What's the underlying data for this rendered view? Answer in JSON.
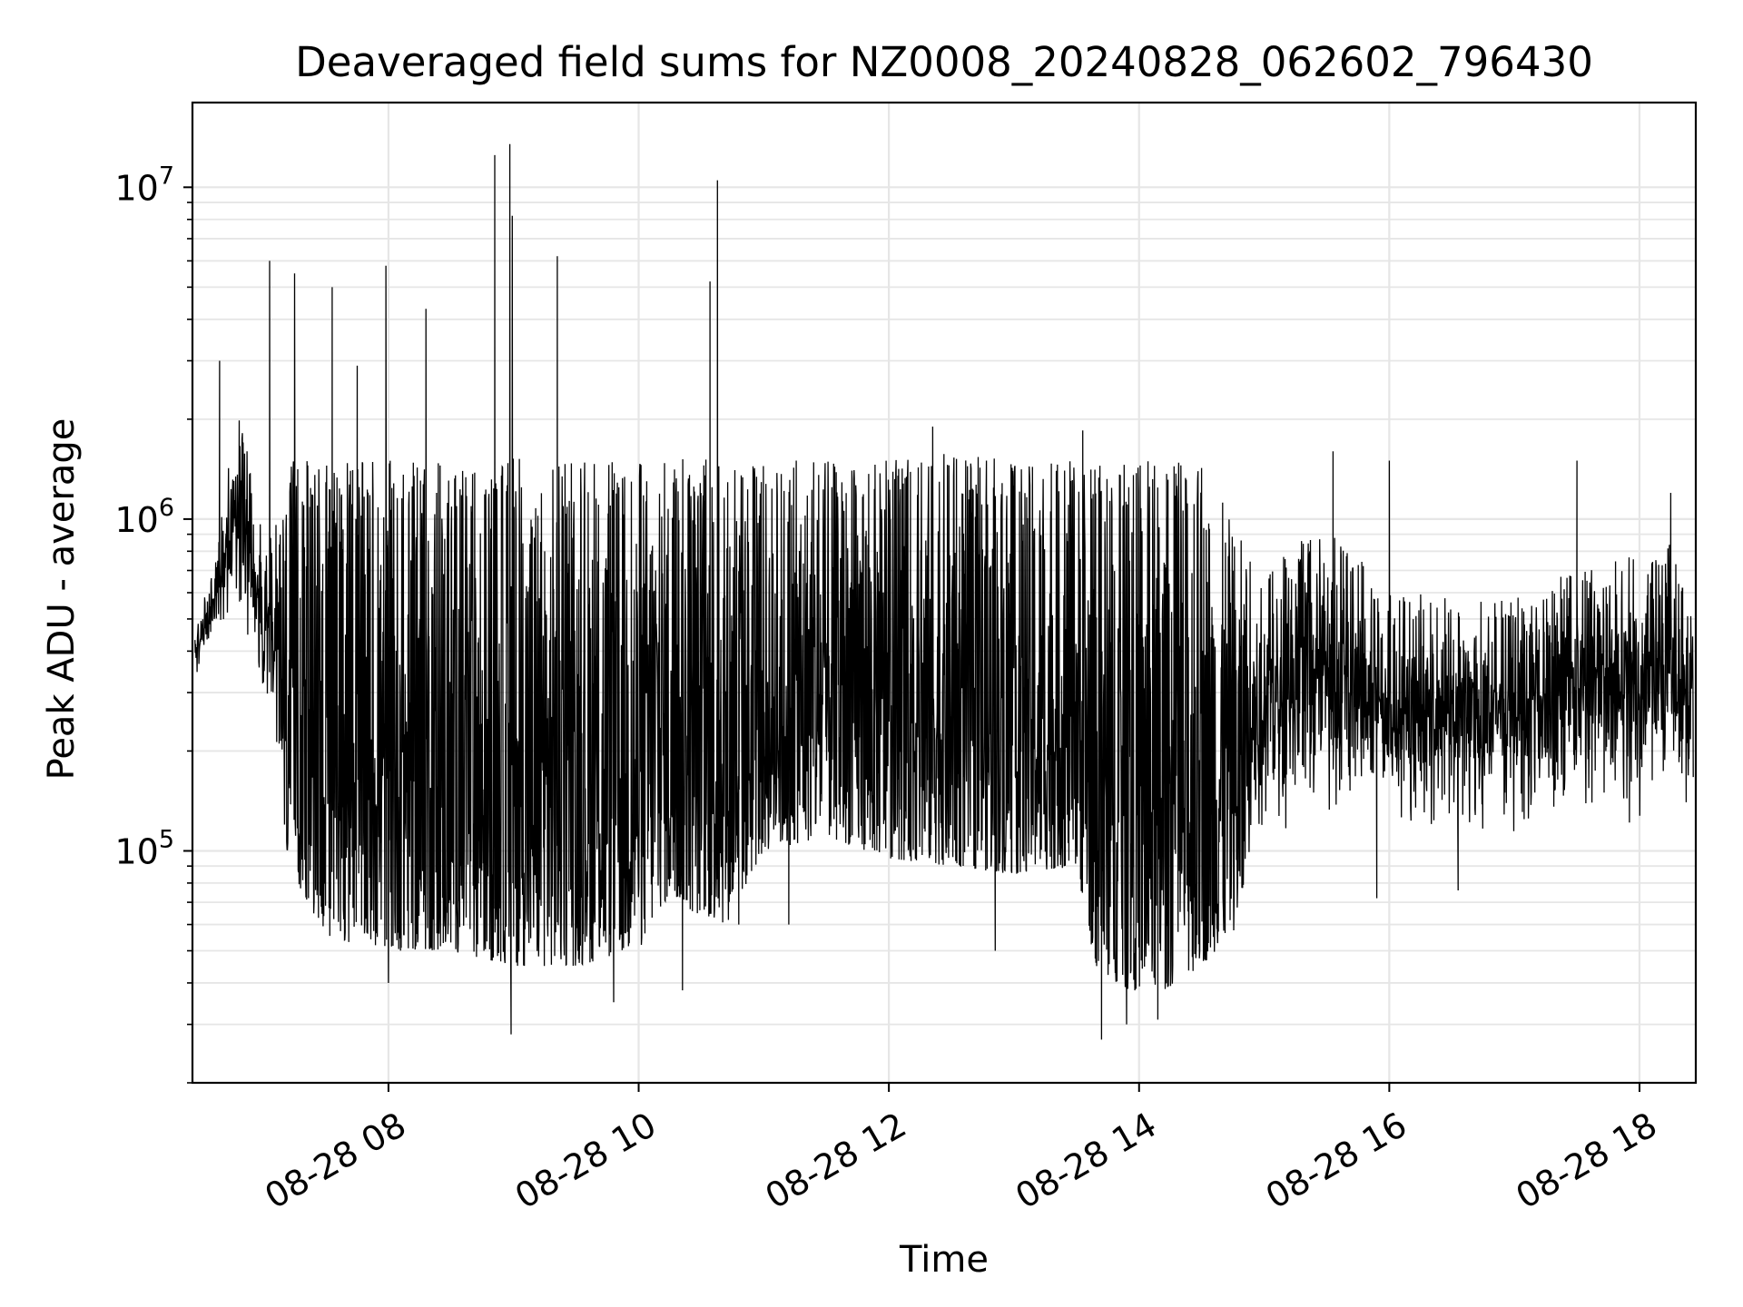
{
  "chart_data": {
    "type": "line",
    "title": "Deaveraged field sums for NZ0008_20240828_062602_796430",
    "xlabel": "Time",
    "ylabel": "Peak ADU - average",
    "yscale": "log",
    "grid": true,
    "xlim": [
      "08-28 06:26",
      "08-28 18:27"
    ],
    "ylim": [
      20000,
      18000000
    ],
    "x_ticks": [
      "08-28 08",
      "08-28 10",
      "08-28 12",
      "08-28 14",
      "08-28 16",
      "08-28 18"
    ],
    "y_ticks": [
      {
        "base": "10",
        "exp": "5",
        "value": 100000
      },
      {
        "base": "10",
        "exp": "6",
        "value": 1000000
      },
      {
        "base": "10",
        "exp": "7",
        "value": 10000000
      }
    ],
    "series": [
      {
        "color": "#000000",
        "x_unit": "hour of 2024-08-28",
        "envelope_x": [
          6.45,
          6.6,
          6.8,
          7.0,
          7.2,
          7.5,
          8.0,
          8.5,
          9.0,
          9.5,
          10.0,
          10.2,
          10.7,
          11.0,
          11.5,
          12.0,
          12.5,
          13.0,
          13.5,
          13.65,
          13.9,
          14.2,
          14.5,
          14.8,
          15.0,
          15.5,
          16.0,
          16.5,
          17.0,
          17.5,
          18.0,
          18.45
        ],
        "envelope_low": [
          320000,
          430000,
          550000,
          220000,
          90000,
          55000,
          50000,
          50000,
          45000,
          45000,
          50000,
          70000,
          60000,
          100000,
          110000,
          95000,
          90000,
          85000,
          90000,
          45000,
          38000,
          38000,
          45000,
          60000,
          110000,
          120000,
          120000,
          110000,
          110000,
          115000,
          120000,
          130000
        ],
        "envelope_high": [
          480000,
          700000,
          2300000,
          900000,
          1500000,
          1500000,
          1500000,
          1500000,
          1600000,
          1500000,
          1500000,
          1600000,
          1600000,
          1500000,
          1500000,
          1500000,
          1600000,
          1500000,
          1500000,
          1500000,
          1500000,
          1500000,
          1500000,
          900000,
          700000,
          1000000,
          600000,
          600000,
          600000,
          700000,
          800000,
          900000
        ],
        "spikes": [
          {
            "x": 6.65,
            "y": 3000000
          },
          {
            "x": 7.05,
            "y": 6000000
          },
          {
            "x": 7.25,
            "y": 5500000
          },
          {
            "x": 7.55,
            "y": 5000000
          },
          {
            "x": 7.75,
            "y": 2900000
          },
          {
            "x": 7.98,
            "y": 5800000
          },
          {
            "x": 8.3,
            "y": 4300000
          },
          {
            "x": 8.85,
            "y": 12500000
          },
          {
            "x": 8.97,
            "y": 13500000
          },
          {
            "x": 8.99,
            "y": 8200000
          },
          {
            "x": 9.35,
            "y": 6200000
          },
          {
            "x": 10.57,
            "y": 5200000
          },
          {
            "x": 10.63,
            "y": 10500000
          },
          {
            "x": 12.35,
            "y": 1900000
          },
          {
            "x": 13.55,
            "y": 1850000
          },
          {
            "x": 15.55,
            "y": 1600000
          },
          {
            "x": 16.0,
            "y": 1500000
          },
          {
            "x": 17.5,
            "y": 1500000
          },
          {
            "x": 18.25,
            "y": 1200000
          }
        ],
        "dips": [
          {
            "x": 8.0,
            "y": 40000
          },
          {
            "x": 8.98,
            "y": 28000
          },
          {
            "x": 9.8,
            "y": 35000
          },
          {
            "x": 10.35,
            "y": 38000
          },
          {
            "x": 10.8,
            "y": 60000
          },
          {
            "x": 11.2,
            "y": 60000
          },
          {
            "x": 12.85,
            "y": 50000
          },
          {
            "x": 13.7,
            "y": 27000
          },
          {
            "x": 13.9,
            "y": 30000
          },
          {
            "x": 14.15,
            "y": 31000
          },
          {
            "x": 15.9,
            "y": 72000
          },
          {
            "x": 16.55,
            "y": 76000
          }
        ]
      }
    ]
  }
}
